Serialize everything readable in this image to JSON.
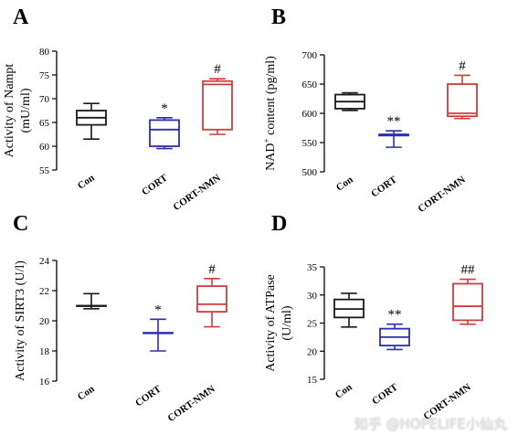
{
  "watermark": "知乎 @HOPELIFE小仙丸",
  "colors": {
    "Con": "#1a1a1a",
    "CORT": "#2b2fb0",
    "CORT-NMN": "#d03c3c"
  },
  "chart_data": [
    {
      "panel": "A",
      "type": "box",
      "ylabel": "Activity of Nampt\n(mU/ml)",
      "ylim": [
        55,
        80
      ],
      "yticks": [
        55,
        60,
        65,
        70,
        75,
        80
      ],
      "categories": [
        "Con",
        "CORT",
        "CORT-NMN"
      ],
      "boxes": [
        {
          "category": "Con",
          "min": 61.5,
          "q1": 64.5,
          "median": 66,
          "q3": 67.5,
          "max": 69,
          "sig": ""
        },
        {
          "category": "CORT",
          "min": 59.5,
          "q1": 60,
          "median": 63.5,
          "q3": 65.5,
          "max": 66,
          "sig": "*"
        },
        {
          "category": "CORT-NMN",
          "min": 62.5,
          "q1": 63.5,
          "median": 73,
          "q3": 73.7,
          "max": 74.2,
          "sig": "#"
        }
      ]
    },
    {
      "panel": "B",
      "type": "box",
      "ylabel": "NAD+ content (pg/ml)",
      "ylim": [
        500,
        700
      ],
      "yticks": [
        500,
        550,
        600,
        650,
        700
      ],
      "categories": [
        "Con",
        "CORT",
        "CORT-NMN"
      ],
      "boxes": [
        {
          "category": "Con",
          "min": 605,
          "q1": 608,
          "median": 620,
          "q3": 632,
          "max": 635,
          "sig": ""
        },
        {
          "category": "CORT",
          "min": 542,
          "q1": 562,
          "median": 563,
          "q3": 564,
          "max": 570,
          "sig": "**"
        },
        {
          "category": "CORT-NMN",
          "min": 591,
          "q1": 595,
          "median": 600,
          "q3": 650,
          "max": 665,
          "sig": "#"
        }
      ]
    },
    {
      "panel": "C",
      "type": "box",
      "ylabel": "Activity of SIRT3 (U/l)",
      "ylim": [
        16,
        24
      ],
      "yticks": [
        16,
        18,
        20,
        22,
        24
      ],
      "categories": [
        "Con",
        "CORT",
        "CORT-NMN"
      ],
      "boxes": [
        {
          "category": "Con",
          "min": 20.8,
          "q1": 21.0,
          "median": 21.0,
          "q3": 21.0,
          "max": 21.8,
          "sig": ""
        },
        {
          "category": "CORT",
          "min": 18.0,
          "q1": 19.2,
          "median": 19.2,
          "q3": 19.2,
          "max": 20.1,
          "sig": "*"
        },
        {
          "category": "CORT-NMN",
          "min": 19.6,
          "q1": 20.6,
          "median": 21.1,
          "q3": 22.3,
          "max": 22.8,
          "sig": "#"
        }
      ]
    },
    {
      "panel": "D",
      "type": "box",
      "ylabel": "Activity of  ATPase\n(U/ml)",
      "ylim": [
        15,
        35
      ],
      "yticks": [
        15,
        20,
        25,
        30,
        35
      ],
      "categories": [
        "Con",
        "CORT",
        "CORT-NMN"
      ],
      "boxes": [
        {
          "category": "Con",
          "min": 24.3,
          "q1": 26.0,
          "median": 27.5,
          "q3": 29.2,
          "max": 30.3,
          "sig": ""
        },
        {
          "category": "CORT",
          "min": 20.3,
          "q1": 21.0,
          "median": 22.5,
          "q3": 24.0,
          "max": 24.8,
          "sig": "**"
        },
        {
          "category": "CORT-NMN",
          "min": 24.8,
          "q1": 25.5,
          "median": 28.0,
          "q3": 32.0,
          "max": 32.8,
          "sig": "##"
        }
      ]
    }
  ]
}
